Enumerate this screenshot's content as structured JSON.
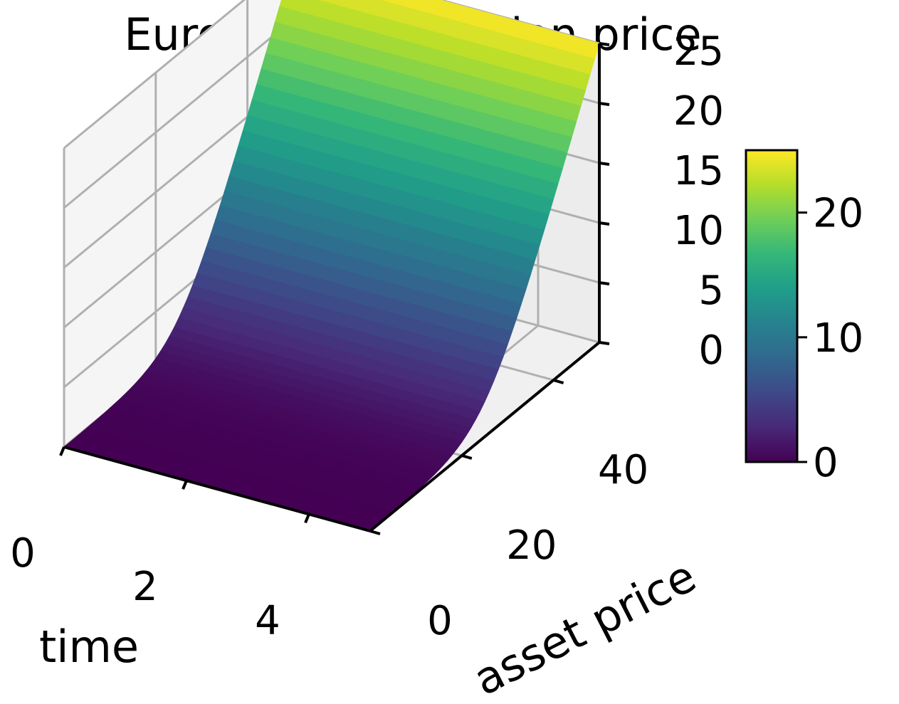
{
  "chart_data": {
    "type": "surface3d",
    "title": "European call option price",
    "xlabel": "time",
    "ylabel": "asset price",
    "zlabel": "",
    "x_ticks": [
      "0",
      "2",
      "4"
    ],
    "y_ticks": [
      "0",
      "20",
      "40"
    ],
    "z_ticks": [
      "0",
      "5",
      "10",
      "15",
      "20",
      "25"
    ],
    "xlim": [
      0,
      5
    ],
    "ylim": [
      0,
      50
    ],
    "zlim": [
      0,
      25
    ],
    "grid": true,
    "colormap": "viridis",
    "colorbar": {
      "ticks": [
        "0",
        "10",
        "20"
      ],
      "range": [
        0,
        25
      ]
    },
    "surface": {
      "time": [
        0,
        0.5,
        1,
        1.5,
        2,
        2.5,
        3,
        3.5,
        4,
        4.5,
        5
      ],
      "asset_price": [
        0,
        5,
        10,
        15,
        20,
        25,
        30,
        35,
        40,
        45,
        50
      ],
      "strike": 25,
      "note_values": "call value rises from 0 near asset price 20 to about 25 at asset price 50; nearly constant along time"
    }
  },
  "colors": {
    "grid": "#b0b0b0",
    "pane": "#f2f2f2",
    "axis": "#000000",
    "viridis": [
      "#440154",
      "#482878",
      "#3e4989",
      "#31688e",
      "#26828e",
      "#1f9e89",
      "#35b779",
      "#6ece58",
      "#b5de2b",
      "#fde725"
    ]
  }
}
